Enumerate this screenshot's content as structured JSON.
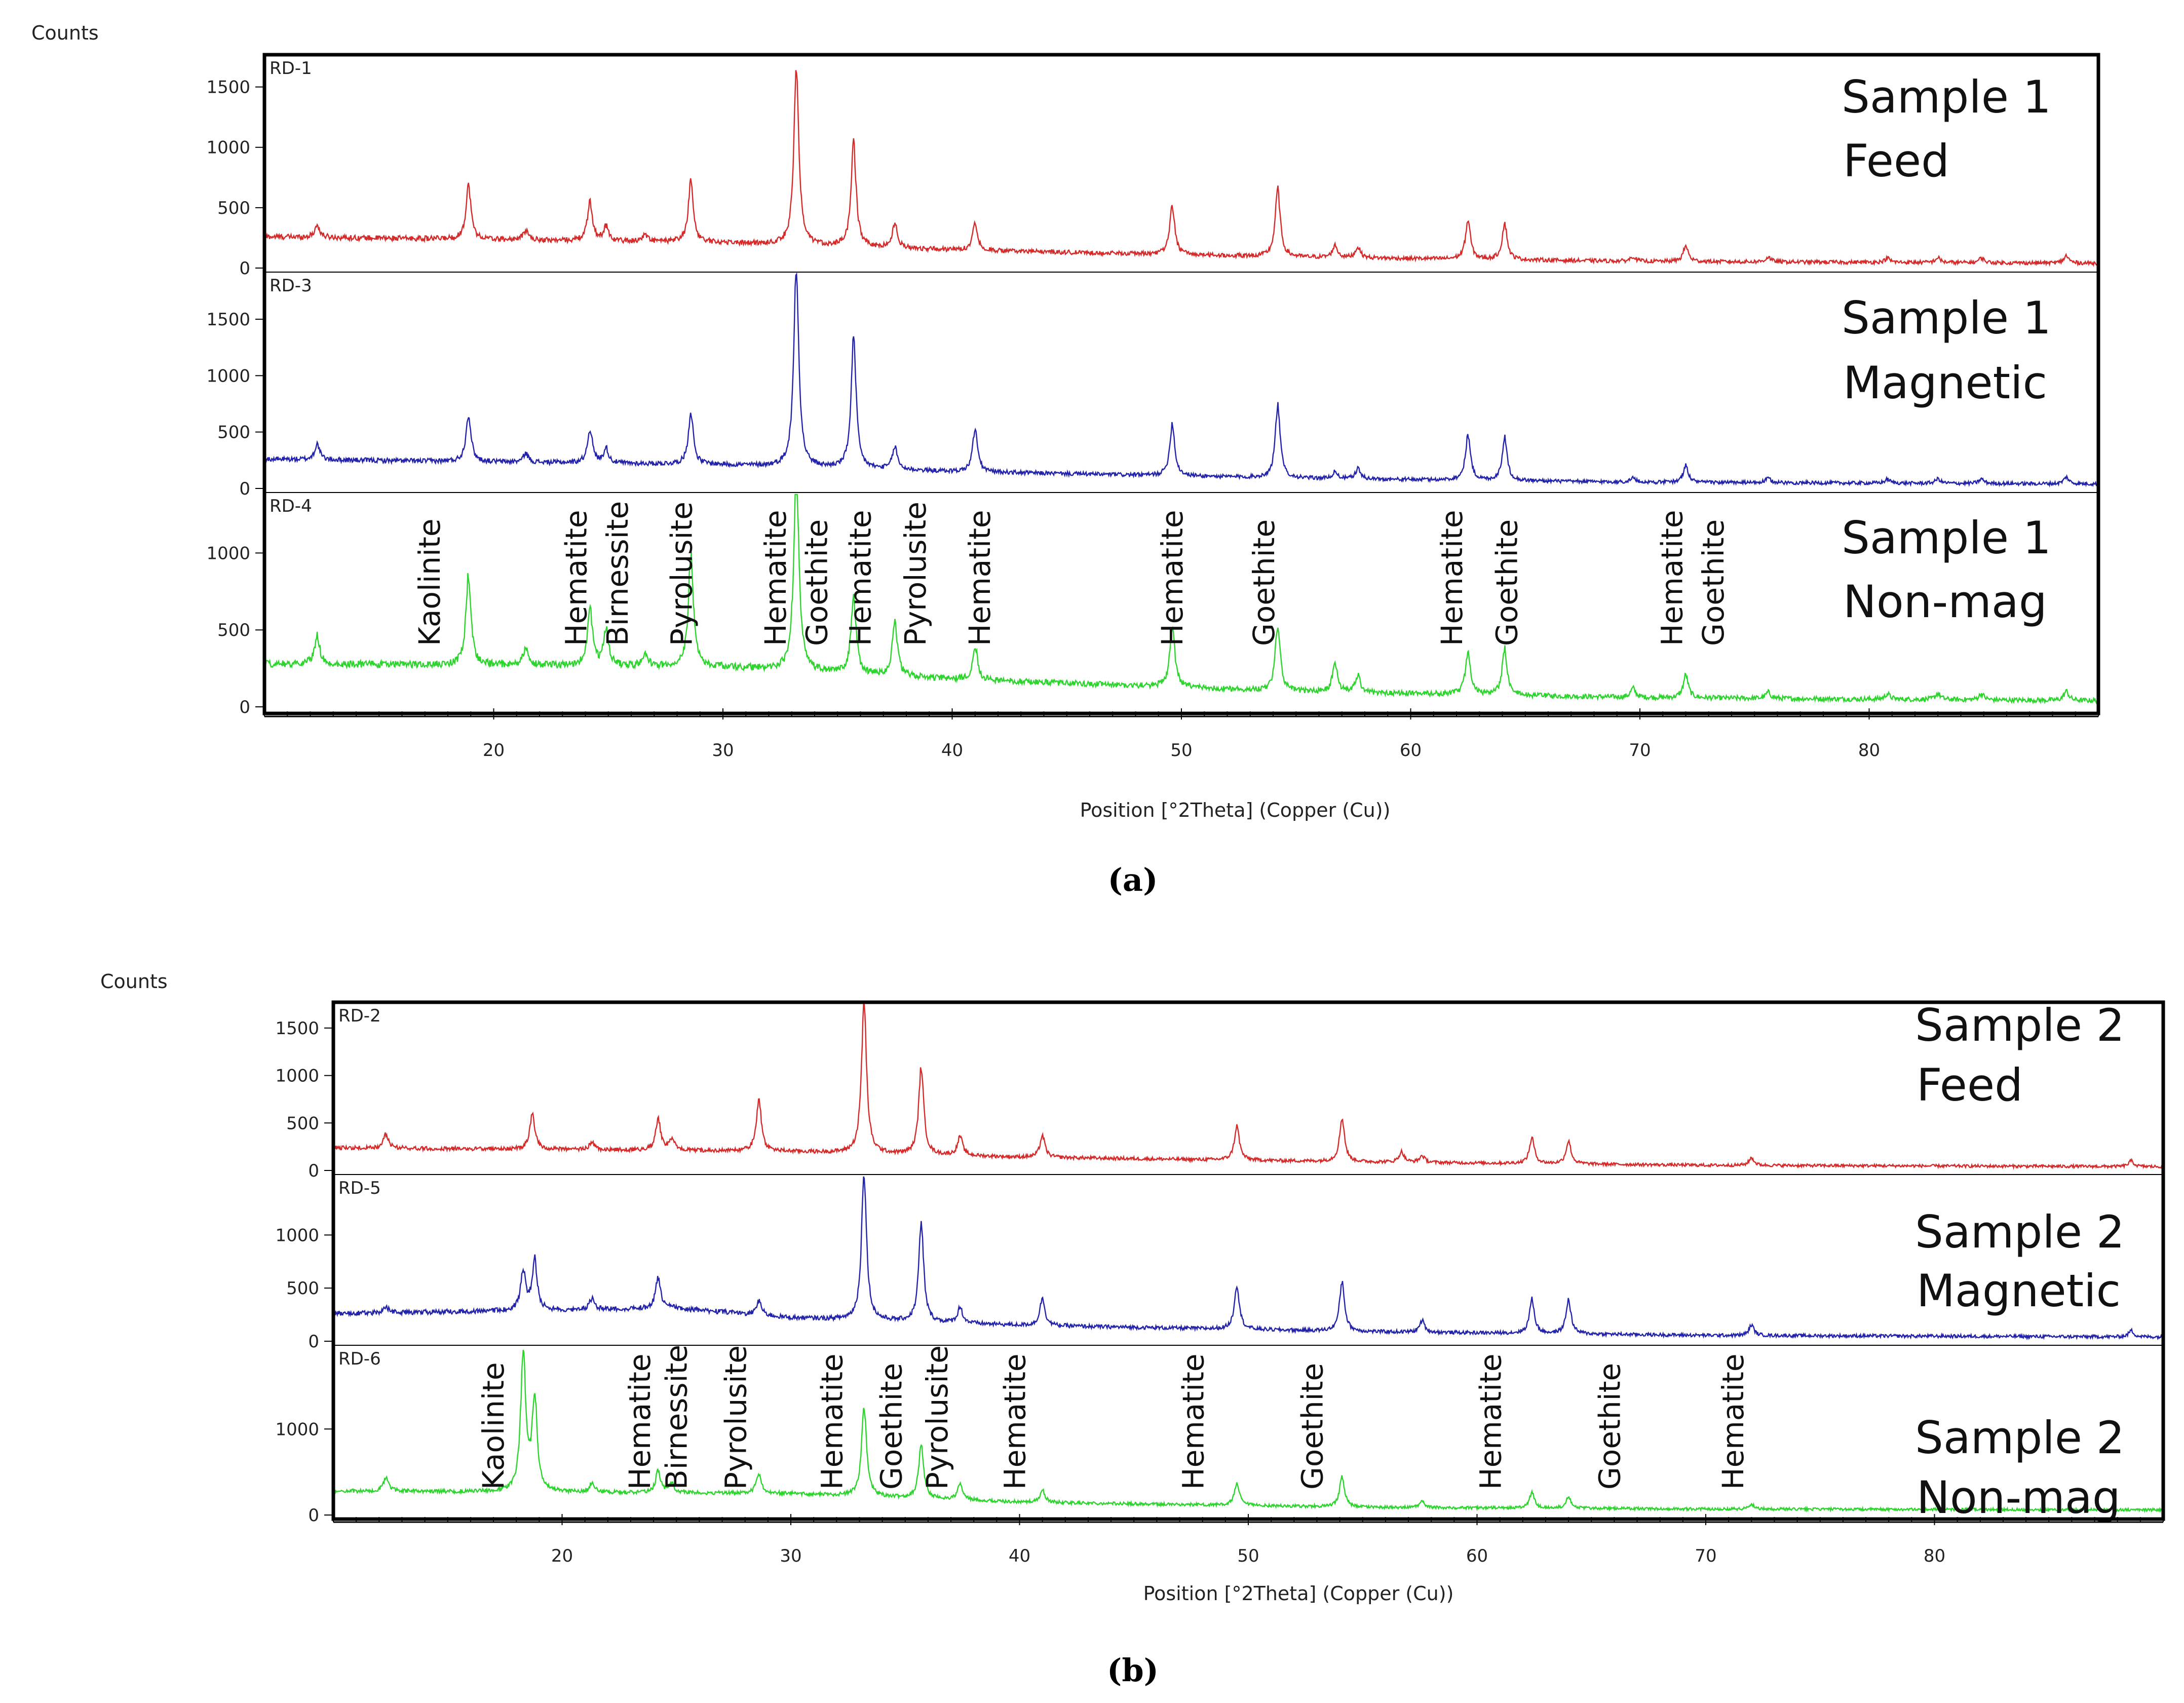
{
  "chart_data": [
    {
      "type": "line",
      "caption": "(a)",
      "ylabel": "Counts",
      "xlabel": "Position [°2Theta] (Copper (Cu))",
      "xlim": [
        10,
        90
      ],
      "xticks": [
        20,
        30,
        40,
        50,
        60,
        70,
        80
      ],
      "panels": [
        {
          "id": "RD-1",
          "sample": "Sample 1",
          "fraction": "Feed",
          "color": "#d42a2a",
          "ylim": [
            0,
            1750
          ],
          "yticks": [
            0,
            500,
            1000,
            1500
          ],
          "baseline": [
            [
              10,
              260
            ],
            [
              30,
              210
            ],
            [
              40,
              150
            ],
            [
              55,
              90
            ],
            [
              70,
              55
            ],
            [
              90,
              40
            ]
          ],
          "peaks": [
            [
              12.3,
              100
            ],
            [
              18.9,
              450
            ],
            [
              21.4,
              80
            ],
            [
              24.2,
              320
            ],
            [
              24.9,
              120
            ],
            [
              26.6,
              60
            ],
            [
              28.6,
              500
            ],
            [
              33.2,
              1450
            ],
            [
              35.7,
              850
            ],
            [
              37.5,
              200
            ],
            [
              41.0,
              230
            ],
            [
              49.6,
              400
            ],
            [
              54.2,
              560
            ],
            [
              56.7,
              100
            ],
            [
              57.7,
              90
            ],
            [
              62.5,
              320
            ],
            [
              64.1,
              300
            ],
            [
              69.7,
              40
            ],
            [
              72.0,
              130
            ],
            [
              75.6,
              40
            ],
            [
              80.8,
              35
            ],
            [
              83.0,
              40
            ],
            [
              84.9,
              40
            ],
            [
              88.6,
              60
            ]
          ]
        },
        {
          "id": "RD-3",
          "sample": "Sample 1",
          "fraction": "Magnetic",
          "color": "#2323aa",
          "ylim": [
            0,
            1900
          ],
          "yticks": [
            0,
            500,
            1000,
            1500
          ],
          "baseline": [
            [
              10,
              260
            ],
            [
              30,
              210
            ],
            [
              40,
              150
            ],
            [
              55,
              90
            ],
            [
              70,
              55
            ],
            [
              90,
              40
            ]
          ],
          "peaks": [
            [
              12.3,
              140
            ],
            [
              18.9,
              420
            ],
            [
              21.4,
              80
            ],
            [
              24.2,
              300
            ],
            [
              24.9,
              130
            ],
            [
              28.6,
              460
            ],
            [
              33.2,
              1800
            ],
            [
              35.7,
              1150
            ],
            [
              37.5,
              200
            ],
            [
              41.0,
              380
            ],
            [
              49.6,
              460
            ],
            [
              54.2,
              640
            ],
            [
              56.7,
              60
            ],
            [
              57.7,
              90
            ],
            [
              62.5,
              400
            ],
            [
              64.1,
              380
            ],
            [
              69.7,
              40
            ],
            [
              72.0,
              150
            ],
            [
              75.6,
              40
            ],
            [
              80.8,
              35
            ],
            [
              83.0,
              40
            ],
            [
              84.9,
              40
            ],
            [
              88.6,
              60
            ]
          ]
        },
        {
          "id": "RD-4",
          "sample": "Sample 1",
          "fraction": "Non-mag",
          "color": "#2ed42e",
          "ylim": [
            0,
            1380
          ],
          "yticks": [
            0,
            500,
            1000
          ],
          "baseline": [
            [
              10,
              280
            ],
            [
              30,
              260
            ],
            [
              40,
              180
            ],
            [
              55,
              100
            ],
            [
              70,
              60
            ],
            [
              90,
              40
            ]
          ],
          "peaks": [
            [
              12.3,
              190
            ],
            [
              18.9,
              590
            ],
            [
              21.4,
              120
            ],
            [
              24.2,
              370
            ],
            [
              24.9,
              240
            ],
            [
              26.6,
              80
            ],
            [
              28.6,
              740
            ],
            [
              33.2,
              1350
            ],
            [
              35.7,
              500
            ],
            [
              37.5,
              360
            ],
            [
              41.0,
              220
            ],
            [
              49.6,
              400
            ],
            [
              54.2,
              420
            ],
            [
              56.7,
              190
            ],
            [
              57.7,
              110
            ],
            [
              62.5,
              280
            ],
            [
              64.1,
              300
            ],
            [
              69.7,
              60
            ],
            [
              72.0,
              150
            ],
            [
              75.6,
              40
            ],
            [
              80.8,
              35
            ],
            [
              83.0,
              40
            ],
            [
              84.9,
              40
            ],
            [
              88.6,
              60
            ]
          ]
        }
      ],
      "annotations": [
        {
          "label": "Kaolinite",
          "x": 17.2
        },
        {
          "label": "Hematite",
          "x": 23.6
        },
        {
          "label": "Birnessite",
          "x": 25.4
        },
        {
          "label": "Pyrolusite",
          "x": 28.2
        },
        {
          "label": "Hematite",
          "x": 32.3
        },
        {
          "label": "Goethite",
          "x": 34.1
        },
        {
          "label": "Hematite",
          "x": 36.0
        },
        {
          "label": "Pyrolusite",
          "x": 38.4
        },
        {
          "label": "Hematite",
          "x": 41.2
        },
        {
          "label": "Hematite",
          "x": 49.6
        },
        {
          "label": "Goethite",
          "x": 53.6
        },
        {
          "label": "Hematite",
          "x": 61.8
        },
        {
          "label": "Goethite",
          "x": 64.2
        },
        {
          "label": "Hematite",
          "x": 71.4
        },
        {
          "label": "Goethite",
          "x": 73.2
        }
      ]
    },
    {
      "type": "line",
      "caption": "(b)",
      "ylabel": "Counts",
      "xlabel": "Position [°2Theta] (Copper (Cu))",
      "xlim": [
        10,
        90
      ],
      "xticks": [
        20,
        30,
        40,
        50,
        60,
        70,
        80
      ],
      "panels": [
        {
          "id": "RD-2",
          "sample": "Sample 2",
          "fraction": "Feed",
          "color": "#d42a2a",
          "ylim": [
            0,
            1750
          ],
          "yticks": [
            0,
            500,
            1000,
            1500
          ],
          "baseline": [
            [
              10,
              240
            ],
            [
              30,
              200
            ],
            [
              40,
              140
            ],
            [
              55,
              90
            ],
            [
              70,
              55
            ],
            [
              90,
              40
            ]
          ],
          "peaks": [
            [
              12.3,
              150
            ],
            [
              18.7,
              380
            ],
            [
              21.3,
              80
            ],
            [
              24.2,
              330
            ],
            [
              24.8,
              120
            ],
            [
              28.6,
              550
            ],
            [
              33.2,
              1600
            ],
            [
              35.7,
              920
            ],
            [
              37.4,
              200
            ],
            [
              41.0,
              230
            ],
            [
              49.5,
              360
            ],
            [
              54.1,
              460
            ],
            [
              56.7,
              110
            ],
            [
              57.6,
              70
            ],
            [
              62.4,
              270
            ],
            [
              64.0,
              240
            ],
            [
              72.0,
              80
            ],
            [
              88.6,
              60
            ]
          ]
        },
        {
          "id": "RD-5",
          "sample": "Sample 2",
          "fraction": "Magnetic",
          "color": "#2323aa",
          "ylim": [
            0,
            1550
          ],
          "yticks": [
            0,
            500,
            1000
          ],
          "baseline": [
            [
              10,
              260
            ],
            [
              25,
              310
            ],
            [
              30,
              220
            ],
            [
              40,
              150
            ],
            [
              55,
              90
            ],
            [
              70,
              55
            ],
            [
              90,
              40
            ]
          ],
          "peaks": [
            [
              12.3,
              60
            ],
            [
              18.3,
              380
            ],
            [
              18.8,
              470
            ],
            [
              21.3,
              100
            ],
            [
              24.2,
              300
            ],
            [
              28.6,
              140
            ],
            [
              33.2,
              1400
            ],
            [
              35.7,
              920
            ],
            [
              37.4,
              150
            ],
            [
              41.0,
              260
            ],
            [
              49.5,
              420
            ],
            [
              54.1,
              470
            ],
            [
              57.6,
              110
            ],
            [
              62.4,
              320
            ],
            [
              64.0,
              320
            ],
            [
              72.0,
              100
            ],
            [
              88.6,
              60
            ]
          ]
        },
        {
          "id": "RD-6",
          "sample": "Sample 2",
          "fraction": "Non-mag",
          "color": "#2ed42e",
          "ylim": [
            0,
            1950
          ],
          "yticks": [
            0,
            1000
          ],
          "baseline": [
            [
              10,
              280
            ],
            [
              30,
              250
            ],
            [
              40,
              150
            ],
            [
              55,
              90
            ],
            [
              70,
              70
            ],
            [
              90,
              60
            ]
          ],
          "peaks": [
            [
              12.3,
              170
            ],
            [
              18.3,
              1620
            ],
            [
              18.8,
              1100
            ],
            [
              21.3,
              100
            ],
            [
              24.2,
              250
            ],
            [
              24.8,
              100
            ],
            [
              28.6,
              230
            ],
            [
              33.2,
              1050
            ],
            [
              35.7,
              620
            ],
            [
              37.4,
              180
            ],
            [
              41.0,
              140
            ],
            [
              49.5,
              250
            ],
            [
              54.1,
              350
            ],
            [
              57.6,
              70
            ],
            [
              62.4,
              180
            ],
            [
              64.0,
              140
            ],
            [
              72.0,
              60
            ]
          ]
        }
      ],
      "annotations": [
        {
          "label": "Kaolinite",
          "x": 17.0
        },
        {
          "label": "Hematite",
          "x": 23.4
        },
        {
          "label": "Birnessite",
          "x": 25.0
        },
        {
          "label": "Pyrolusite",
          "x": 27.6
        },
        {
          "label": "Hematite",
          "x": 31.8
        },
        {
          "label": "Goethite",
          "x": 34.4
        },
        {
          "label": "Pyrolusite",
          "x": 36.4
        },
        {
          "label": "Hematite",
          "x": 39.8
        },
        {
          "label": "Hematite",
          "x": 47.6
        },
        {
          "label": "Goethite",
          "x": 52.8
        },
        {
          "label": "Hematite",
          "x": 60.6
        },
        {
          "label": "Goethite",
          "x": 65.8
        },
        {
          "label": "Hematite",
          "x": 71.2
        }
      ]
    }
  ]
}
